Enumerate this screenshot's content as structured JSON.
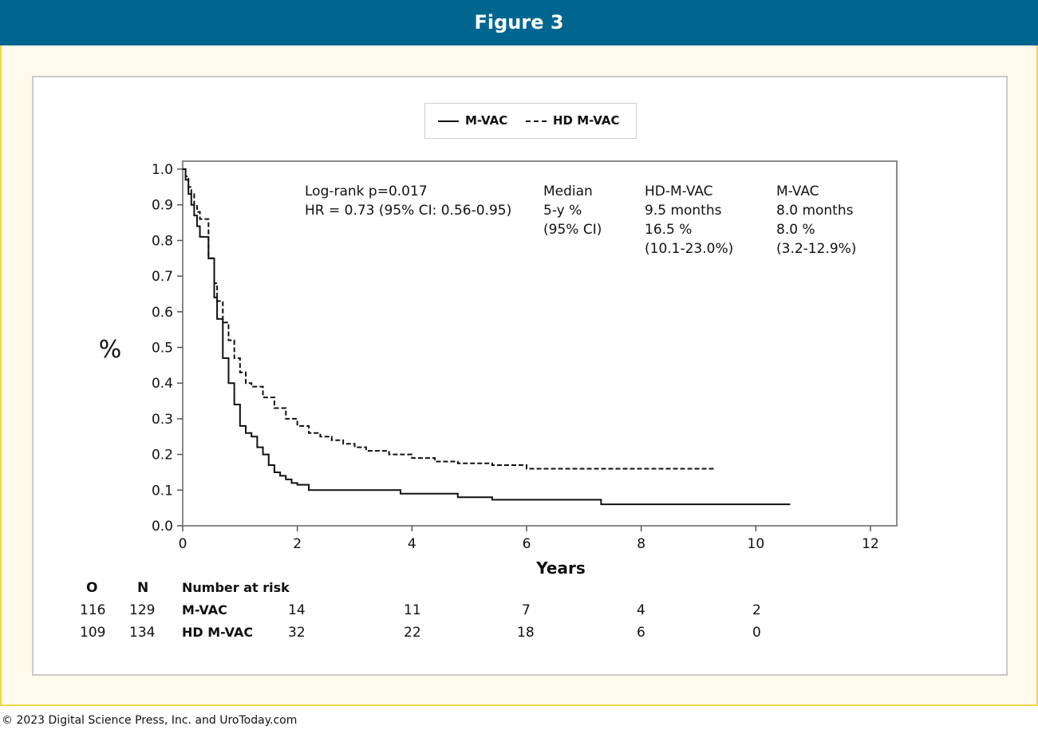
{
  "header": {
    "title": "Figure 3"
  },
  "legend": [
    {
      "name": "M-VAC",
      "style": "solid"
    },
    {
      "name": "HD M-VAC",
      "style": "dashed"
    }
  ],
  "annotations": {
    "logrank": "Log-rank p=0.017",
    "hr": "HR = 0.73 (95% CI: 0.56-0.95)",
    "median_label": "Median",
    "fivey_label": "5-y %",
    "ci_label": "(95% CI)",
    "hd_title": "HD-M-VAC",
    "hd_median": "9.5 months",
    "hd_fivey": "16.5 %",
    "hd_ci": "(10.1-23.0%)",
    "mv_title": "M-VAC",
    "mv_median": "8.0 months",
    "mv_fivey": "8.0 %",
    "mv_ci": "(3.2-12.9%)"
  },
  "risk_table": {
    "header": {
      "o": "O",
      "n": "N",
      "label": "Number at risk"
    },
    "rows": [
      {
        "o": "116",
        "n": "129",
        "name": "M-VAC",
        "values": [
          "14",
          "11",
          "7",
          "4",
          "2"
        ]
      },
      {
        "o": "109",
        "n": "134",
        "name": "HD M-VAC",
        "values": [
          "32",
          "22",
          "18",
          "6",
          "0"
        ]
      }
    ]
  },
  "copyright": "© 2023 Digital Science Press, Inc. and UroToday.com",
  "chart_data": {
    "type": "line",
    "title": "",
    "xlabel": "Years",
    "ylabel": "%",
    "xlim": [
      0,
      12
    ],
    "ylim": [
      0,
      1.0
    ],
    "xticks": [
      0,
      2,
      4,
      6,
      8,
      10,
      12
    ],
    "yticks": [
      0.0,
      0.1,
      0.2,
      0.3,
      0.4,
      0.5,
      0.6,
      0.7,
      0.8,
      0.9,
      1.0
    ],
    "ytick_labels": [
      "0.0",
      "0.1",
      "0.2",
      "0.3",
      "0.4",
      "0.5",
      "0.6",
      "0.7",
      "0.8",
      "0.9",
      "1.0"
    ],
    "grid": false,
    "legend_position": "top-center",
    "series": [
      {
        "name": "M-VAC",
        "style": "solid",
        "x": [
          0,
          0.05,
          0.1,
          0.15,
          0.2,
          0.25,
          0.3,
          0.45,
          0.55,
          0.6,
          0.7,
          0.8,
          0.9,
          1.0,
          1.1,
          1.2,
          1.3,
          1.4,
          1.5,
          1.6,
          1.7,
          1.8,
          1.9,
          2.0,
          2.2,
          3.0,
          3.8,
          4.8,
          5.4,
          7.3,
          10.6
        ],
        "y": [
          1.0,
          0.97,
          0.93,
          0.9,
          0.87,
          0.84,
          0.81,
          0.75,
          0.64,
          0.58,
          0.47,
          0.4,
          0.34,
          0.28,
          0.26,
          0.25,
          0.22,
          0.2,
          0.17,
          0.15,
          0.14,
          0.13,
          0.12,
          0.115,
          0.1,
          0.1,
          0.09,
          0.08,
          0.073,
          0.06,
          0.06
        ]
      },
      {
        "name": "HD M-VAC",
        "style": "dashed",
        "x": [
          0,
          0.05,
          0.1,
          0.15,
          0.2,
          0.25,
          0.3,
          0.45,
          0.55,
          0.6,
          0.7,
          0.8,
          0.9,
          1.0,
          1.1,
          1.2,
          1.4,
          1.6,
          1.8,
          2.0,
          2.2,
          2.4,
          2.6,
          2.8,
          3.0,
          3.2,
          3.6,
          4.0,
          4.4,
          4.8,
          5.4,
          6.0,
          7.0,
          9.3
        ],
        "y": [
          1.0,
          0.98,
          0.95,
          0.93,
          0.9,
          0.88,
          0.86,
          0.75,
          0.68,
          0.63,
          0.57,
          0.52,
          0.47,
          0.43,
          0.4,
          0.39,
          0.36,
          0.33,
          0.3,
          0.28,
          0.26,
          0.25,
          0.24,
          0.23,
          0.22,
          0.21,
          0.2,
          0.19,
          0.18,
          0.175,
          0.17,
          0.16,
          0.16,
          0.16
        ]
      }
    ]
  }
}
